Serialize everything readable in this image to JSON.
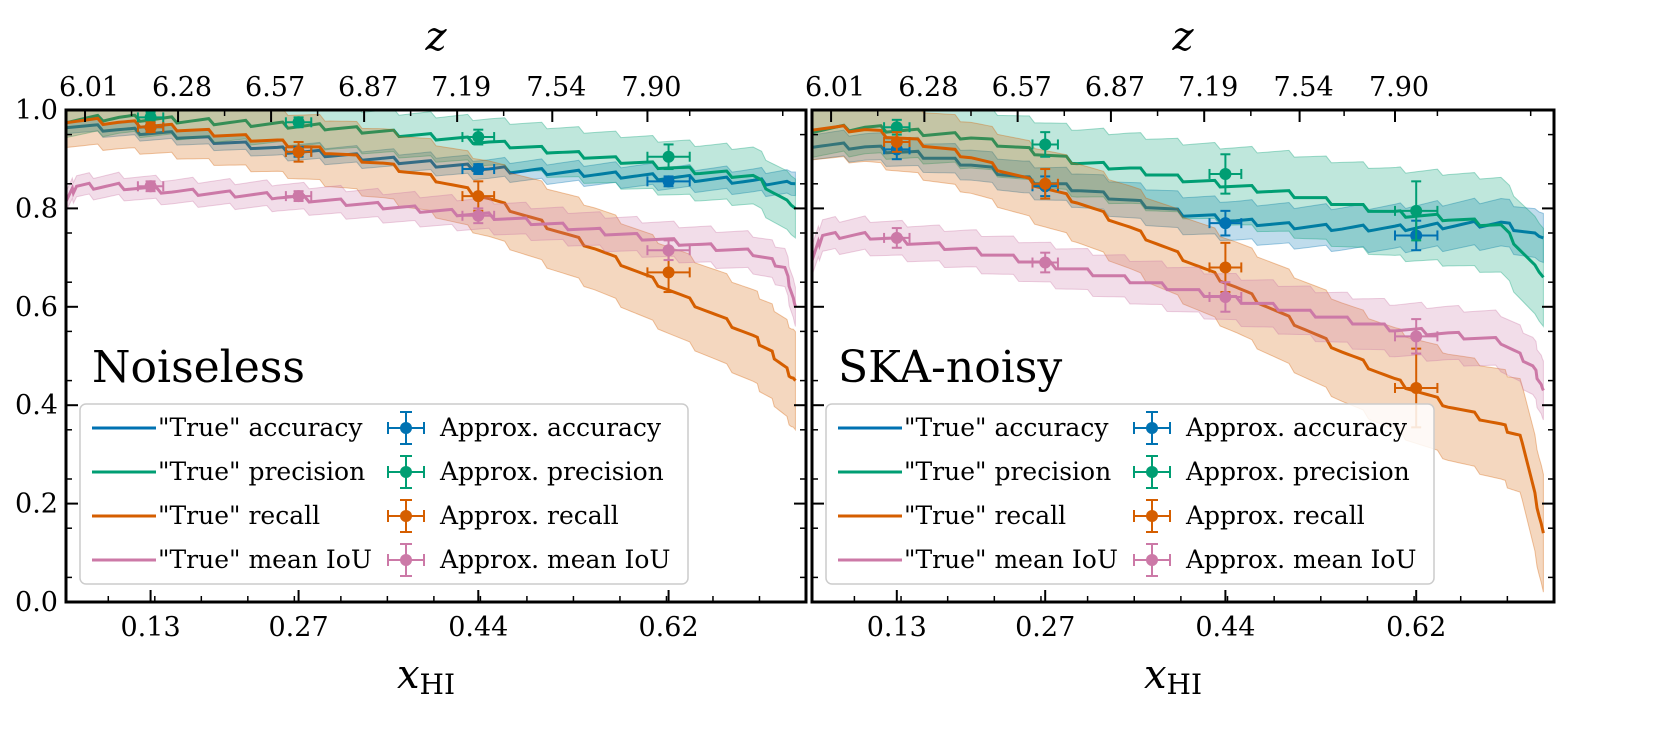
{
  "colors": {
    "accuracy": "#0072b2",
    "precision": "#009e73",
    "recall": "#d55e00",
    "iou": "#cc79a7"
  },
  "chart_data": [
    {
      "type": "line",
      "panel_label": "Noiseless",
      "xlabel": "x",
      "xlabel_sub": "HI",
      "top_xlabel": "z",
      "xlim": [
        0.05,
        0.75
      ],
      "ylim": [
        0.0,
        1.0
      ],
      "xticks": [
        0.13,
        0.27,
        0.44,
        0.62
      ],
      "xtick_labels": [
        "0.13",
        "0.27",
        "0.44",
        "0.62"
      ],
      "yticks": [
        0.0,
        0.2,
        0.4,
        0.6,
        0.8,
        1.0
      ],
      "ytick_labels": [
        "0.0",
        "0.2",
        "0.4",
        "0.6",
        "0.8",
        "1.0"
      ],
      "top_ticks": [
        0.068,
        0.156,
        0.244,
        0.332,
        0.42,
        0.51,
        0.6
      ],
      "top_tick_labels": [
        "6.01",
        "6.28",
        "6.57",
        "6.87",
        "7.19",
        "7.54",
        "7.90"
      ],
      "legend_location": "lower-left",
      "series": [
        {
          "name": "\"True\" accuracy",
          "color_key": "accuracy",
          "x": [
            0.05,
            0.1,
            0.15,
            0.2,
            0.25,
            0.3,
            0.35,
            0.4,
            0.45,
            0.5,
            0.55,
            0.6,
            0.65,
            0.7,
            0.74
          ],
          "y": [
            0.97,
            0.96,
            0.95,
            0.935,
            0.92,
            0.91,
            0.9,
            0.89,
            0.88,
            0.875,
            0.87,
            0.865,
            0.86,
            0.855,
            0.85
          ],
          "band": 0.012
        },
        {
          "name": "\"True\" precision",
          "color_key": "precision",
          "x": [
            0.05,
            0.1,
            0.15,
            0.2,
            0.25,
            0.3,
            0.35,
            0.4,
            0.45,
            0.5,
            0.55,
            0.6,
            0.65,
            0.7,
            0.74
          ],
          "y": [
            0.98,
            0.985,
            0.98,
            0.975,
            0.97,
            0.965,
            0.955,
            0.945,
            0.935,
            0.92,
            0.905,
            0.89,
            0.875,
            0.865,
            0.8
          ],
          "band": 0.03
        },
        {
          "name": "\"True\" recall",
          "color_key": "recall",
          "x": [
            0.05,
            0.1,
            0.15,
            0.2,
            0.25,
            0.3,
            0.35,
            0.4,
            0.45,
            0.5,
            0.55,
            0.6,
            0.65,
            0.7,
            0.72,
            0.74
          ],
          "y": [
            0.98,
            0.975,
            0.965,
            0.95,
            0.935,
            0.915,
            0.89,
            0.86,
            0.82,
            0.77,
            0.72,
            0.66,
            0.6,
            0.54,
            0.5,
            0.45
          ],
          "band": 0.05
        },
        {
          "name": "\"True\" mean IoU",
          "color_key": "iou",
          "x": [
            0.05,
            0.06,
            0.1,
            0.15,
            0.2,
            0.25,
            0.3,
            0.35,
            0.4,
            0.45,
            0.5,
            0.55,
            0.6,
            0.65,
            0.7,
            0.73,
            0.74
          ],
          "y": [
            0.82,
            0.845,
            0.845,
            0.835,
            0.83,
            0.825,
            0.815,
            0.805,
            0.795,
            0.785,
            0.77,
            0.755,
            0.74,
            0.725,
            0.71,
            0.68,
            0.6
          ],
          "band": 0.02
        }
      ],
      "approx": [
        {
          "name": "Approx. accuracy",
          "color_key": "accuracy",
          "points": [
            {
              "x": 0.13,
              "y": 0.965,
              "xerr": 0.012,
              "yerr": 0.01
            },
            {
              "x": 0.27,
              "y": 0.915,
              "xerr": 0.012,
              "yerr": 0.01
            },
            {
              "x": 0.44,
              "y": 0.88,
              "xerr": 0.015,
              "yerr": 0.01
            },
            {
              "x": 0.62,
              "y": 0.855,
              "xerr": 0.02,
              "yerr": 0.01
            }
          ]
        },
        {
          "name": "Approx. precision",
          "color_key": "precision",
          "points": [
            {
              "x": 0.13,
              "y": 0.985,
              "xerr": 0.012,
              "yerr": 0.01
            },
            {
              "x": 0.27,
              "y": 0.975,
              "xerr": 0.012,
              "yerr": 0.01
            },
            {
              "x": 0.44,
              "y": 0.945,
              "xerr": 0.015,
              "yerr": 0.015
            },
            {
              "x": 0.62,
              "y": 0.905,
              "xerr": 0.02,
              "yerr": 0.025
            }
          ]
        },
        {
          "name": "Approx. recall",
          "color_key": "recall",
          "points": [
            {
              "x": 0.13,
              "y": 0.965,
              "xerr": 0.012,
              "yerr": 0.01
            },
            {
              "x": 0.27,
              "y": 0.915,
              "xerr": 0.012,
              "yerr": 0.02
            },
            {
              "x": 0.44,
              "y": 0.825,
              "xerr": 0.015,
              "yerr": 0.03
            },
            {
              "x": 0.62,
              "y": 0.67,
              "xerr": 0.02,
              "yerr": 0.04
            }
          ]
        },
        {
          "name": "Approx. mean IoU",
          "color_key": "iou",
          "points": [
            {
              "x": 0.13,
              "y": 0.845,
              "xerr": 0.012,
              "yerr": 0.01
            },
            {
              "x": 0.27,
              "y": 0.825,
              "xerr": 0.012,
              "yerr": 0.01
            },
            {
              "x": 0.44,
              "y": 0.785,
              "xerr": 0.015,
              "yerr": 0.015
            },
            {
              "x": 0.62,
              "y": 0.715,
              "xerr": 0.02,
              "yerr": 0.02
            }
          ]
        }
      ]
    },
    {
      "type": "line",
      "panel_label": "SKA-noisy",
      "xlabel": "x",
      "xlabel_sub": "HI",
      "top_xlabel": "z",
      "xlim": [
        0.05,
        0.75
      ],
      "ylim": [
        0.0,
        1.0
      ],
      "xticks": [
        0.13,
        0.27,
        0.44,
        0.62
      ],
      "xtick_labels": [
        "0.13",
        "0.27",
        "0.44",
        "0.62"
      ],
      "yticks": [
        0.0,
        0.2,
        0.4,
        0.6,
        0.8,
        1.0
      ],
      "ytick_labels": [
        "0.0",
        "0.2",
        "0.4",
        "0.6",
        "0.8",
        "1.0"
      ],
      "top_ticks": [
        0.068,
        0.156,
        0.244,
        0.332,
        0.42,
        0.51,
        0.6
      ],
      "top_tick_labels": [
        "6.01",
        "6.28",
        "6.57",
        "6.87",
        "7.19",
        "7.54",
        "7.90"
      ],
      "legend_location": "lower-left",
      "series": [
        {
          "name": "\"True\" accuracy",
          "color_key": "accuracy",
          "x": [
            0.05,
            0.1,
            0.15,
            0.2,
            0.25,
            0.3,
            0.35,
            0.4,
            0.45,
            0.5,
            0.55,
            0.6,
            0.65,
            0.7,
            0.74
          ],
          "y": [
            0.93,
            0.925,
            0.91,
            0.89,
            0.86,
            0.84,
            0.815,
            0.79,
            0.775,
            0.765,
            0.76,
            0.76,
            0.765,
            0.77,
            0.74
          ],
          "band": 0.025
        },
        {
          "name": "\"True\" precision",
          "color_key": "precision",
          "x": [
            0.05,
            0.1,
            0.15,
            0.2,
            0.25,
            0.3,
            0.35,
            0.4,
            0.45,
            0.5,
            0.55,
            0.6,
            0.65,
            0.7,
            0.74
          ],
          "y": [
            0.96,
            0.965,
            0.955,
            0.945,
            0.92,
            0.895,
            0.88,
            0.86,
            0.845,
            0.83,
            0.81,
            0.79,
            0.78,
            0.765,
            0.66
          ],
          "band": 0.05
        },
        {
          "name": "\"True\" recall",
          "color_key": "recall",
          "x": [
            0.05,
            0.1,
            0.15,
            0.2,
            0.25,
            0.3,
            0.35,
            0.4,
            0.45,
            0.5,
            0.55,
            0.6,
            0.65,
            0.7,
            0.72,
            0.74
          ],
          "y": [
            0.965,
            0.96,
            0.935,
            0.905,
            0.86,
            0.815,
            0.76,
            0.7,
            0.64,
            0.575,
            0.51,
            0.45,
            0.4,
            0.36,
            0.33,
            0.14
          ],
          "band": 0.06
        },
        {
          "name": "\"True\" mean IoU",
          "color_key": "iou",
          "x": [
            0.05,
            0.06,
            0.1,
            0.15,
            0.2,
            0.25,
            0.3,
            0.35,
            0.4,
            0.45,
            0.5,
            0.55,
            0.6,
            0.65,
            0.7,
            0.73,
            0.74
          ],
          "y": [
            0.7,
            0.745,
            0.745,
            0.73,
            0.715,
            0.695,
            0.675,
            0.655,
            0.635,
            0.615,
            0.595,
            0.575,
            0.555,
            0.545,
            0.53,
            0.48,
            0.43
          ],
          "band": 0.03
        }
      ],
      "approx": [
        {
          "name": "Approx. accuracy",
          "color_key": "accuracy",
          "points": [
            {
              "x": 0.13,
              "y": 0.92,
              "xerr": 0.012,
              "yerr": 0.02
            },
            {
              "x": 0.27,
              "y": 0.845,
              "xerr": 0.012,
              "yerr": 0.02
            },
            {
              "x": 0.44,
              "y": 0.77,
              "xerr": 0.015,
              "yerr": 0.025
            },
            {
              "x": 0.62,
              "y": 0.745,
              "xerr": 0.02,
              "yerr": 0.03
            }
          ]
        },
        {
          "name": "Approx. precision",
          "color_key": "precision",
          "points": [
            {
              "x": 0.13,
              "y": 0.965,
              "xerr": 0.012,
              "yerr": 0.015
            },
            {
              "x": 0.27,
              "y": 0.93,
              "xerr": 0.012,
              "yerr": 0.025
            },
            {
              "x": 0.44,
              "y": 0.87,
              "xerr": 0.015,
              "yerr": 0.04
            },
            {
              "x": 0.62,
              "y": 0.795,
              "xerr": 0.02,
              "yerr": 0.06
            }
          ]
        },
        {
          "name": "Approx. recall",
          "color_key": "recall",
          "points": [
            {
              "x": 0.13,
              "y": 0.935,
              "xerr": 0.012,
              "yerr": 0.02
            },
            {
              "x": 0.27,
              "y": 0.85,
              "xerr": 0.012,
              "yerr": 0.03
            },
            {
              "x": 0.44,
              "y": 0.68,
              "xerr": 0.015,
              "yerr": 0.05
            },
            {
              "x": 0.62,
              "y": 0.435,
              "xerr": 0.02,
              "yerr": 0.08
            }
          ]
        },
        {
          "name": "Approx. mean IoU",
          "color_key": "iou",
          "points": [
            {
              "x": 0.13,
              "y": 0.74,
              "xerr": 0.012,
              "yerr": 0.02
            },
            {
              "x": 0.27,
              "y": 0.69,
              "xerr": 0.012,
              "yerr": 0.02
            },
            {
              "x": 0.44,
              "y": 0.62,
              "xerr": 0.015,
              "yerr": 0.03
            },
            {
              "x": 0.62,
              "y": 0.54,
              "xerr": 0.02,
              "yerr": 0.035
            }
          ]
        }
      ]
    }
  ]
}
